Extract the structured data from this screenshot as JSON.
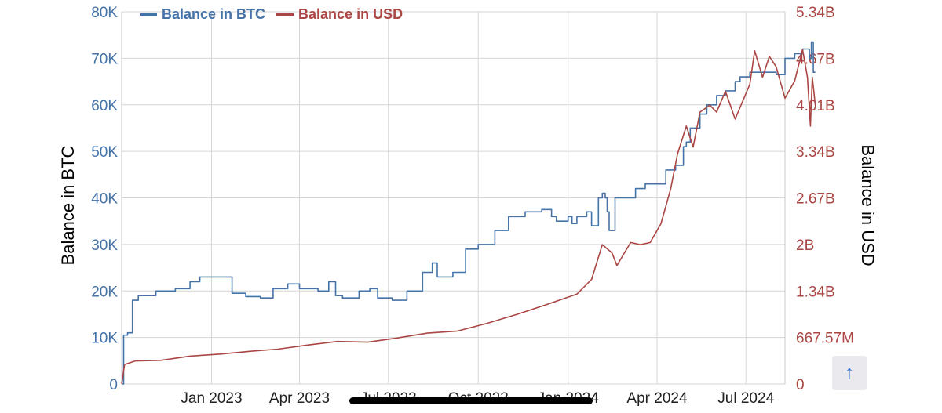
{
  "chart_data": {
    "type": "line",
    "title": "",
    "x_ticks": [
      "Jan 2023",
      "Apr 2023",
      "Jul 2023",
      "Oct 2023",
      "Jan 2024",
      "Apr 2024",
      "Jul 2024"
    ],
    "x_range": [
      "2022-10-01",
      "2024-08-10"
    ],
    "y_left": {
      "label": "Balance in BTC",
      "ticks": [
        "0",
        "10K",
        "20K",
        "30K",
        "40K",
        "50K",
        "60K",
        "70K",
        "80K"
      ],
      "range": [
        0,
        80000
      ],
      "color": "#4572a7"
    },
    "y_right": {
      "label": "Balance in USD",
      "ticks": [
        "0",
        "667.57M",
        "1.34B",
        "2B",
        "2.67B",
        "3.34B",
        "4.01B",
        "4.67B",
        "5.34B"
      ],
      "range": [
        0,
        5340000000
      ],
      "color": "#aa4643"
    },
    "grid": true,
    "legend_position": "top-left",
    "series": [
      {
        "name": "Balance in BTC",
        "axis": "left",
        "color": "#4572a7",
        "points": [
          [
            "2022-10-01",
            0
          ],
          [
            "2022-10-03",
            10500
          ],
          [
            "2022-10-07",
            11000
          ],
          [
            "2022-10-12",
            18000
          ],
          [
            "2022-10-18",
            19000
          ],
          [
            "2022-10-28",
            19000
          ],
          [
            "2022-11-05",
            20000
          ],
          [
            "2022-11-25",
            20500
          ],
          [
            "2022-12-10",
            22000
          ],
          [
            "2022-12-20",
            23000
          ],
          [
            "2023-01-05",
            23000
          ],
          [
            "2023-01-20",
            23000
          ],
          [
            "2023-01-22",
            19500
          ],
          [
            "2023-02-05",
            18800
          ],
          [
            "2023-02-20",
            18500
          ],
          [
            "2023-03-05",
            20500
          ],
          [
            "2023-03-20",
            21500
          ],
          [
            "2023-04-01",
            20500
          ],
          [
            "2023-04-20",
            20000
          ],
          [
            "2023-05-01",
            22000
          ],
          [
            "2023-05-08",
            19000
          ],
          [
            "2023-05-15",
            18500
          ],
          [
            "2023-06-01",
            20000
          ],
          [
            "2023-06-12",
            20500
          ],
          [
            "2023-06-20",
            18500
          ],
          [
            "2023-07-05",
            18000
          ],
          [
            "2023-07-12",
            18000
          ],
          [
            "2023-07-20",
            20000
          ],
          [
            "2023-08-05",
            24000
          ],
          [
            "2023-08-15",
            26000
          ],
          [
            "2023-08-20",
            23000
          ],
          [
            "2023-09-05",
            24000
          ],
          [
            "2023-09-18",
            29000
          ],
          [
            "2023-10-01",
            30000
          ],
          [
            "2023-10-18",
            33000
          ],
          [
            "2023-11-01",
            36000
          ],
          [
            "2023-11-18",
            37000
          ],
          [
            "2023-12-05",
            37500
          ],
          [
            "2023-12-15",
            36000
          ],
          [
            "2023-12-20",
            35000
          ],
          [
            "2024-01-01",
            36000
          ],
          [
            "2024-01-05",
            34500
          ],
          [
            "2024-01-10",
            36000
          ],
          [
            "2024-01-20",
            37000
          ],
          [
            "2024-01-25",
            34000
          ],
          [
            "2024-02-01",
            40000
          ],
          [
            "2024-02-05",
            41000
          ],
          [
            "2024-02-08",
            40000
          ],
          [
            "2024-02-10",
            37000
          ],
          [
            "2024-02-12",
            33000
          ],
          [
            "2024-02-18",
            40000
          ],
          [
            "2024-03-01",
            40000
          ],
          [
            "2024-03-10",
            42000
          ],
          [
            "2024-03-20",
            43000
          ],
          [
            "2024-04-01",
            43000
          ],
          [
            "2024-04-10",
            46000
          ],
          [
            "2024-04-20",
            47000
          ],
          [
            "2024-04-28",
            51000
          ],
          [
            "2024-05-01",
            52000
          ],
          [
            "2024-05-05",
            55000
          ],
          [
            "2024-05-15",
            58000
          ],
          [
            "2024-05-22",
            60000
          ],
          [
            "2024-06-01",
            62000
          ],
          [
            "2024-06-10",
            63000
          ],
          [
            "2024-06-20",
            65000
          ],
          [
            "2024-06-25",
            66000
          ],
          [
            "2024-07-05",
            67000
          ],
          [
            "2024-07-20",
            67000
          ],
          [
            "2024-08-01",
            66500
          ],
          [
            "2024-08-10",
            70000
          ],
          [
            "2024-08-20",
            71000
          ],
          [
            "2024-08-28",
            72000
          ],
          [
            "2024-09-04",
            70000
          ],
          [
            "2024-09-06",
            73500
          ],
          [
            "2024-09-08",
            67000
          ],
          [
            "2024-09-10",
            67000
          ]
        ]
      },
      {
        "name": "Balance in USD",
        "axis": "right",
        "color": "#aa4643",
        "points": [
          [
            "2022-10-01",
            0
          ],
          [
            "2022-10-04",
            280000000
          ],
          [
            "2022-10-15",
            330000000
          ],
          [
            "2022-11-10",
            340000000
          ],
          [
            "2022-12-10",
            400000000
          ],
          [
            "2023-01-10",
            430000000
          ],
          [
            "2023-02-10",
            470000000
          ],
          [
            "2023-03-10",
            500000000
          ],
          [
            "2023-04-10",
            560000000
          ],
          [
            "2023-05-10",
            610000000
          ],
          [
            "2023-06-10",
            600000000
          ],
          [
            "2023-07-10",
            660000000
          ],
          [
            "2023-08-10",
            730000000
          ],
          [
            "2023-09-10",
            760000000
          ],
          [
            "2023-10-10",
            870000000
          ],
          [
            "2023-11-10",
            1000000000
          ],
          [
            "2023-12-10",
            1140000000
          ],
          [
            "2024-01-10",
            1290000000
          ],
          [
            "2024-01-25",
            1500000000
          ],
          [
            "2024-02-05",
            2000000000
          ],
          [
            "2024-02-15",
            1880000000
          ],
          [
            "2024-02-20",
            1700000000
          ],
          [
            "2024-02-25",
            1820000000
          ],
          [
            "2024-03-05",
            2030000000
          ],
          [
            "2024-03-15",
            2000000000
          ],
          [
            "2024-03-25",
            2030000000
          ],
          [
            "2024-04-05",
            2300000000
          ],
          [
            "2024-04-15",
            2800000000
          ],
          [
            "2024-04-22",
            3300000000
          ],
          [
            "2024-05-01",
            3700000000
          ],
          [
            "2024-05-08",
            3400000000
          ],
          [
            "2024-05-15",
            3900000000
          ],
          [
            "2024-05-25",
            4000000000
          ],
          [
            "2024-06-01",
            3900000000
          ],
          [
            "2024-06-10",
            4200000000
          ],
          [
            "2024-06-20",
            3800000000
          ],
          [
            "2024-07-05",
            4300000000
          ],
          [
            "2024-07-10",
            4780000000
          ],
          [
            "2024-07-18",
            4400000000
          ],
          [
            "2024-07-25",
            4700000000
          ],
          [
            "2024-08-01",
            4550000000
          ],
          [
            "2024-08-10",
            4100000000
          ],
          [
            "2024-08-20",
            4350000000
          ],
          [
            "2024-08-28",
            4800000000
          ],
          [
            "2024-09-02",
            4400000000
          ],
          [
            "2024-09-05",
            3700000000
          ],
          [
            "2024-09-07",
            4400000000
          ],
          [
            "2024-09-10",
            4000000000
          ]
        ]
      }
    ]
  },
  "controls": {
    "scroll_top_icon": "↑"
  }
}
